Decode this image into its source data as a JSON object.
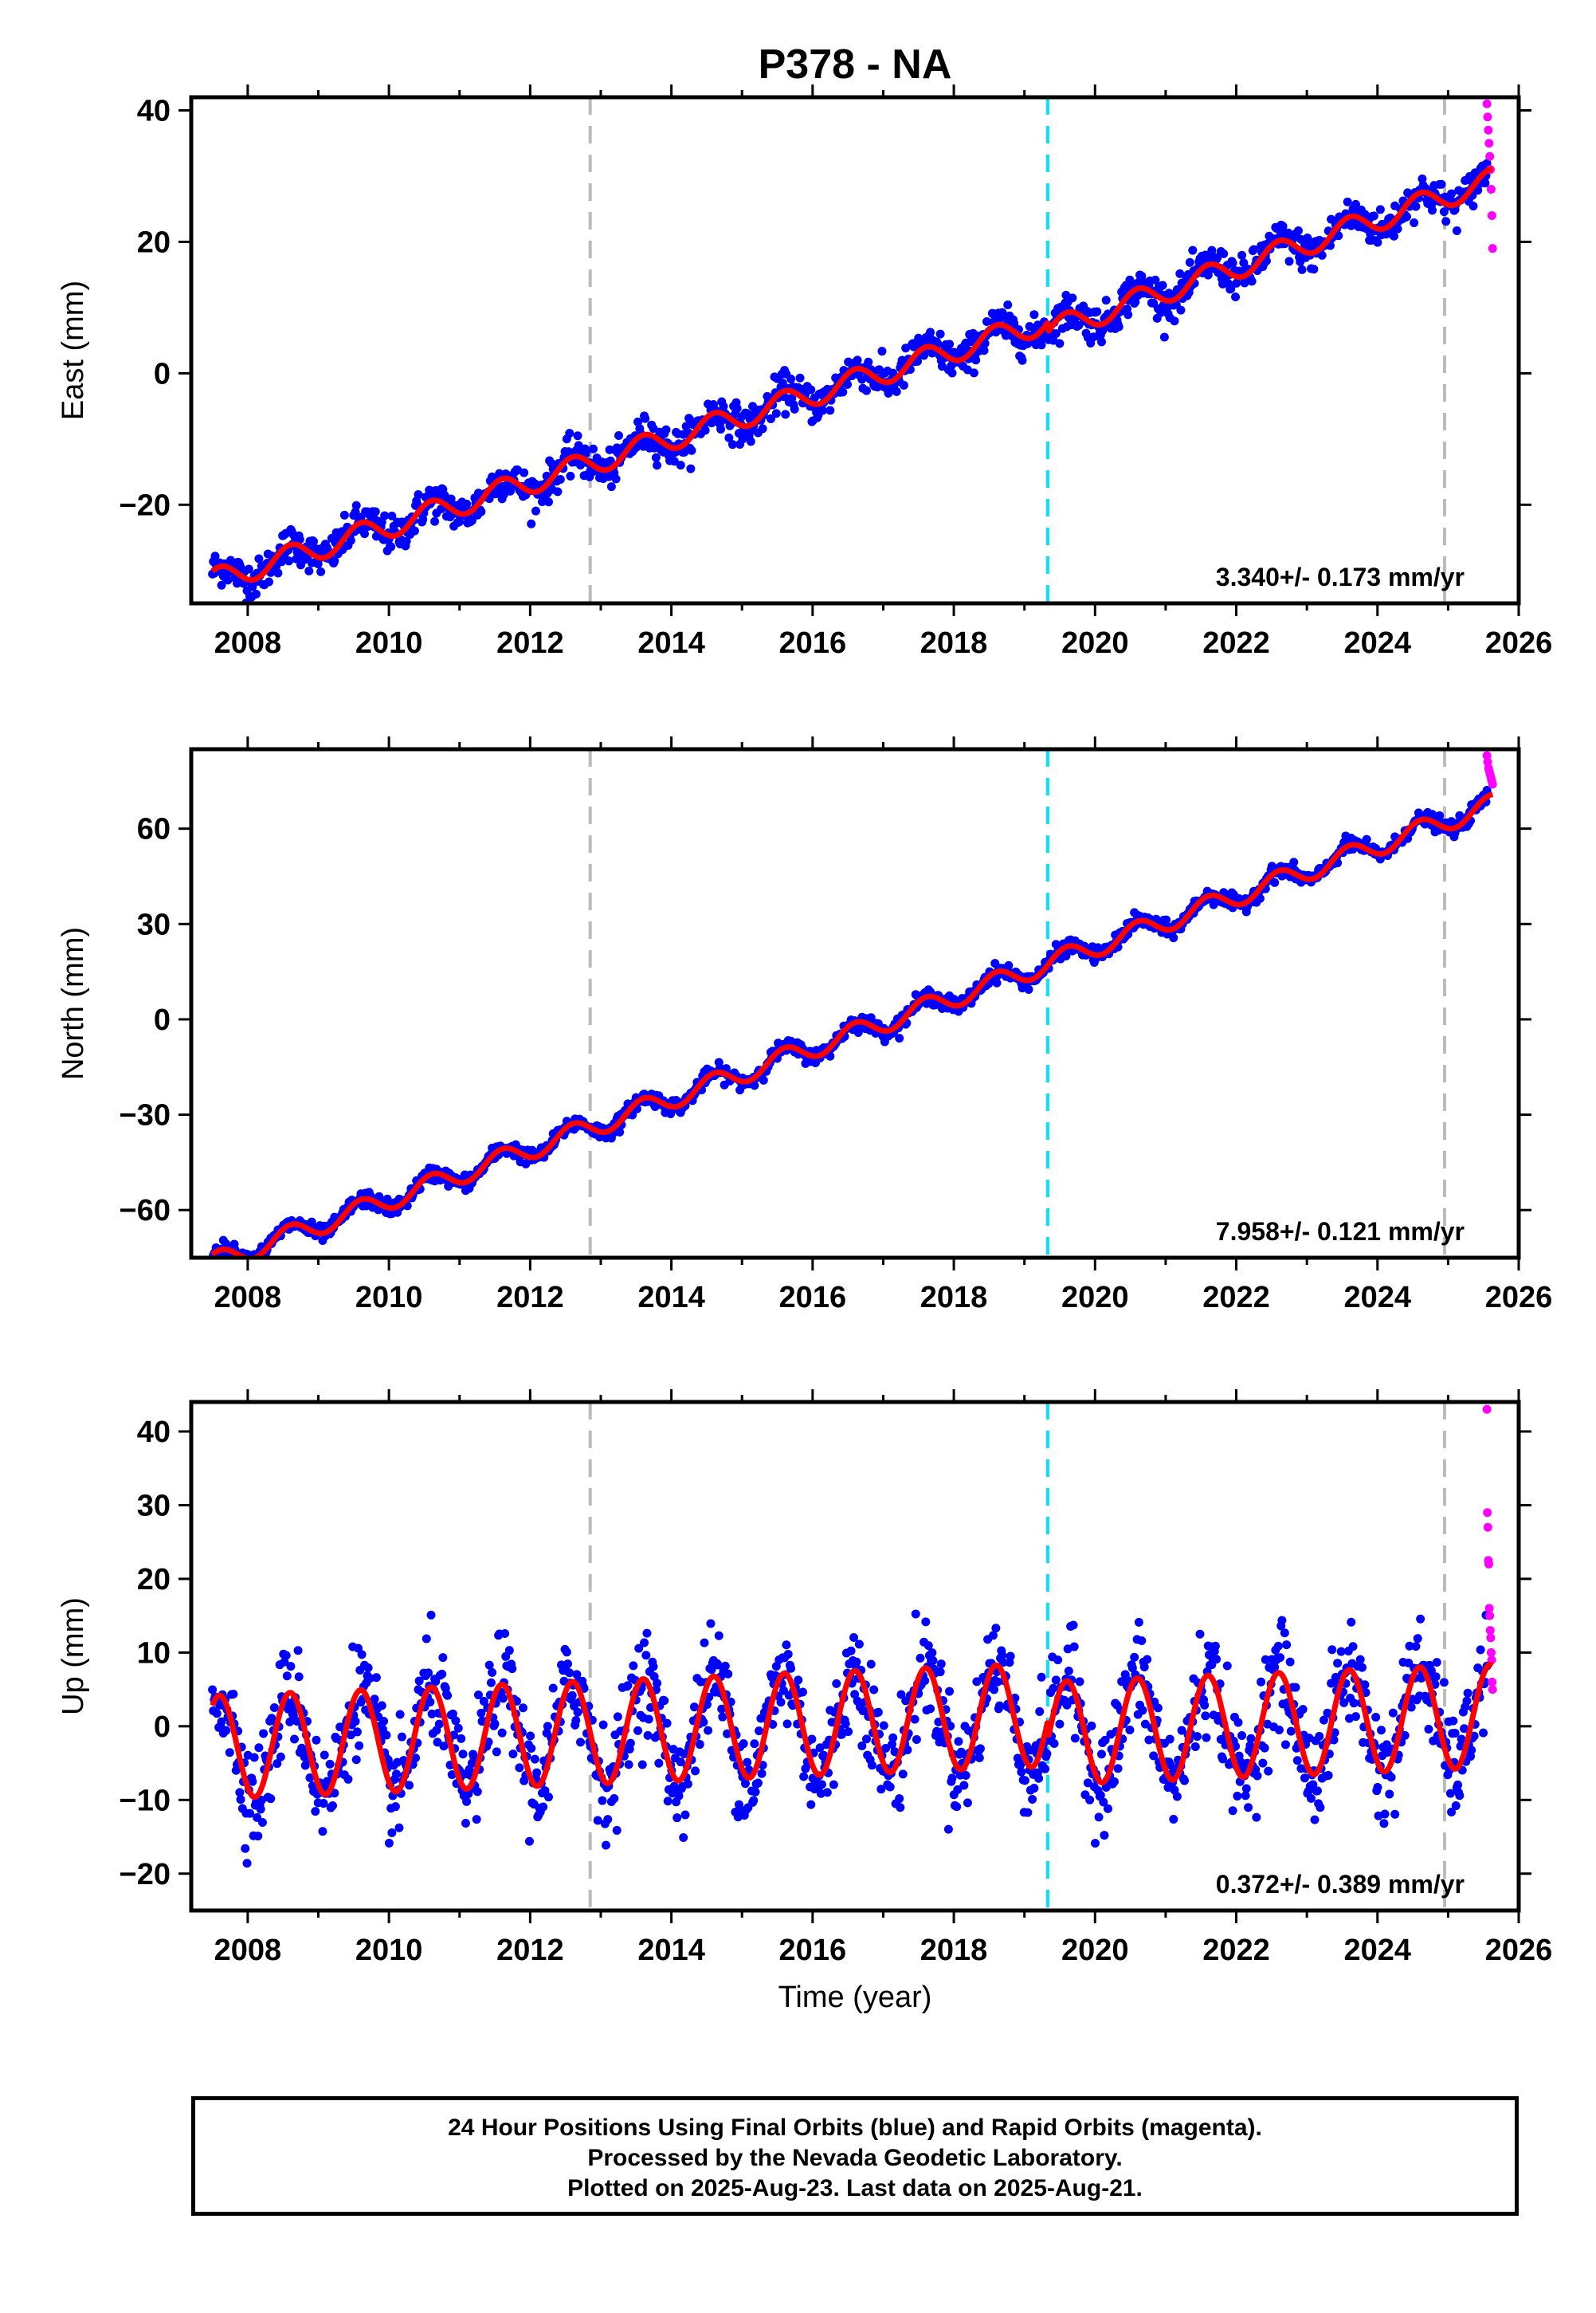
{
  "title": "P378 - NA",
  "xlabel": "Time (year)",
  "caption": {
    "line1": "24 Hour Positions Using Final Orbits (blue) and Rapid Orbits (magenta).",
    "line2": "Processed by the Nevada Geodetic Laboratory.",
    "line3": "Plotted on 2025-Aug-23. Last data on 2025-Aug-21."
  },
  "colors": {
    "final_orbits": "#0000ff",
    "rapid_orbits": "#ff00ff",
    "model_fit": "#ff0000",
    "equipment_change": "#bbbbbb",
    "earthquake_event": "#00e5ff"
  },
  "chart_data": [
    {
      "type": "scatter",
      "ylabel": "East (mm)",
      "xlim": [
        2007.2,
        2026.0
      ],
      "ylim": [
        -35,
        42
      ],
      "xticks": [
        "2008",
        "2010",
        "2012",
        "2014",
        "2016",
        "2018",
        "2020",
        "2022",
        "2024",
        "2026"
      ],
      "yticks": [
        "40",
        "20",
        "0",
        "−20"
      ],
      "ytick_values": [
        40,
        20,
        0,
        -20
      ],
      "vertical_lines": [
        {
          "x": 2012.85,
          "kind": "equipment_change"
        },
        {
          "x": 2019.33,
          "kind": "earthquake_event"
        },
        {
          "x": 2024.95,
          "kind": "equipment_change"
        }
      ],
      "rate_label": "3.340+/- 0.173 mm/yr",
      "model": {
        "t0": 2016.5,
        "intercept": -1.5,
        "rate": 3.34,
        "seasonal_amplitude": 1.8,
        "offset_at_2019_33": -1.5,
        "extra_drift_after_2019": 1.0
      },
      "series": [
        {
          "name": "Final Orbits",
          "x_range": [
            2007.5,
            2025.55
          ],
          "scatter_sd": 1.4
        },
        {
          "name": "Rapid Orbits",
          "x_range": [
            2025.55,
            2025.63
          ],
          "values": [
            41,
            39,
            37,
            35,
            33,
            31,
            28,
            24,
            19
          ]
        }
      ]
    },
    {
      "type": "scatter",
      "ylabel": "North (mm)",
      "xlim": [
        2007.2,
        2026.0
      ],
      "ylim": [
        -75,
        85
      ],
      "xticks": [
        "2008",
        "2010",
        "2012",
        "2014",
        "2016",
        "2018",
        "2020",
        "2022",
        "2024",
        "2026"
      ],
      "yticks": [
        "60",
        "30",
        "0",
        "−30",
        "−60"
      ],
      "ytick_values": [
        60,
        30,
        0,
        -30,
        -60
      ],
      "vertical_lines": [
        {
          "x": 2012.85,
          "kind": "equipment_change"
        },
        {
          "x": 2019.33,
          "kind": "earthquake_event"
        },
        {
          "x": 2024.95,
          "kind": "equipment_change"
        }
      ],
      "rate_label": "7.958+/- 0.121 mm/yr",
      "model": {
        "t0": 2016.5,
        "intercept": -5.0,
        "rate": 7.958,
        "seasonal_amplitude": 3.2
      },
      "series": [
        {
          "name": "Final Orbits",
          "x_range": [
            2007.5,
            2025.55
          ],
          "scatter_sd": 1.2
        },
        {
          "name": "Rapid Orbits",
          "x_range": [
            2025.55,
            2025.63
          ],
          "values": [
            83,
            81,
            79,
            78,
            77,
            76,
            75,
            74
          ]
        }
      ]
    },
    {
      "type": "scatter",
      "ylabel": "Up (mm)",
      "xlim": [
        2007.2,
        2026.0
      ],
      "ylim": [
        -25,
        44
      ],
      "xticks": [
        "2008",
        "2010",
        "2012",
        "2014",
        "2016",
        "2018",
        "2020",
        "2022",
        "2024",
        "2026"
      ],
      "yticks": [
        "40",
        "30",
        "20",
        "10",
        "0",
        "−10",
        "−20"
      ],
      "ytick_values": [
        40,
        30,
        20,
        10,
        0,
        -10,
        -20
      ],
      "vertical_lines": [
        {
          "x": 2012.85,
          "kind": "equipment_change"
        },
        {
          "x": 2019.33,
          "kind": "earthquake_event"
        },
        {
          "x": 2024.95,
          "kind": "equipment_change"
        }
      ],
      "rate_label": "0.372+/- 0.389 mm/yr",
      "model": {
        "t0": 2016.5,
        "intercept": 0.5,
        "rate": 0.372,
        "seasonal_amplitude": 7.0,
        "offset_at_2019_33": -2.5
      },
      "series": [
        {
          "name": "Final Orbits",
          "x_range": [
            2007.5,
            2025.55
          ],
          "scatter_sd": 3.5
        },
        {
          "name": "Rapid Orbits",
          "x_range": [
            2025.55,
            2025.63
          ],
          "values": [
            43,
            29,
            27,
            22.5,
            22,
            16,
            15,
            13,
            12,
            10,
            9,
            6,
            5
          ]
        }
      ]
    }
  ]
}
